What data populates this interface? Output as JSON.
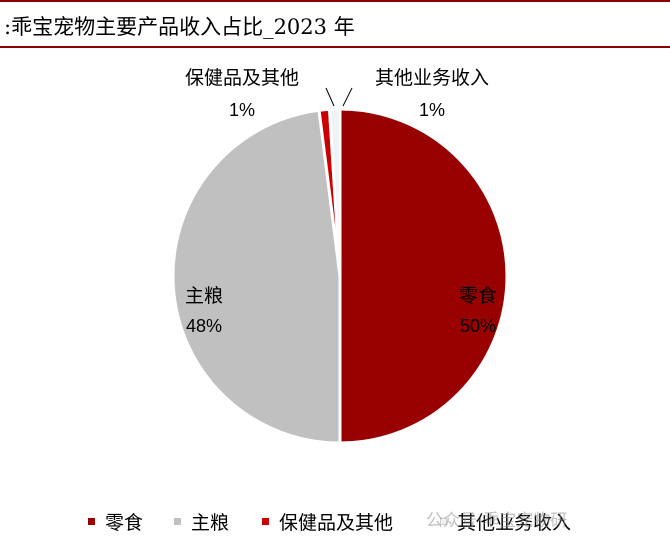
{
  "header": {
    "title": ":乖宝宠物主要产品收入占比_2023 年"
  },
  "chart_data": {
    "type": "pie",
    "title": "",
    "slices": [
      {
        "name": "零食",
        "value": 50,
        "label": "50%",
        "color": "#990000"
      },
      {
        "name": "主粮",
        "value": 48,
        "label": "48%",
        "color": "#c0c0c0"
      },
      {
        "name": "保健品及其他",
        "value": 1,
        "label": "1%",
        "color": "#cc0000"
      },
      {
        "name": "其他业务收入",
        "value": 1,
        "label": "1%",
        "color": "#f2f2f2"
      }
    ],
    "legend_position": "bottom"
  },
  "watermark": {
    "text": "公众号·乖宝宠物研"
  }
}
